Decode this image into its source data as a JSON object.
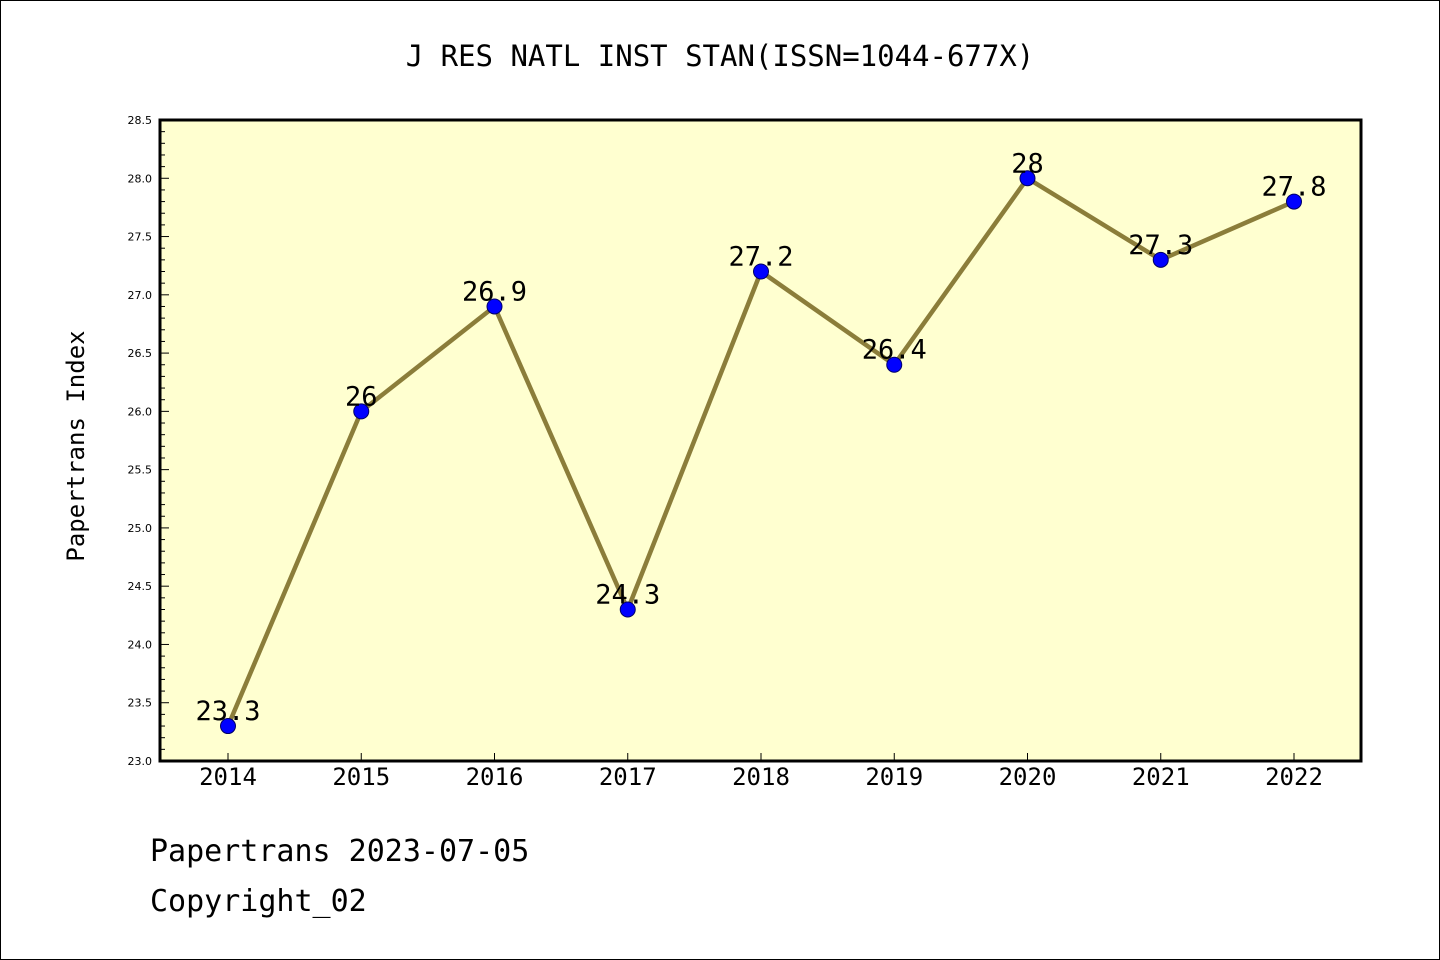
{
  "chart_data": {
    "type": "line",
    "title": "J RES NATL INST STAN(ISSN=1044-677X)",
    "ylabel": "Papertrans Index",
    "xlabel": "",
    "categories": [
      "2014",
      "2015",
      "2016",
      "2017",
      "2018",
      "2019",
      "2020",
      "2021",
      "2022"
    ],
    "series": [
      {
        "values": [
          23.3,
          26,
          26.9,
          24.3,
          27.2,
          26.4,
          28,
          27.3,
          27.8
        ]
      }
    ],
    "data_labels": [
      "23.3",
      "26",
      "26.9",
      "24.3",
      "27.2",
      "26.4",
      "28",
      "27.3",
      "27.8"
    ],
    "ylim": [
      23.0,
      28.5
    ],
    "yticks": [
      "23.0",
      "23.5",
      "24.0",
      "24.5",
      "25.0",
      "25.5",
      "26.0",
      "26.5",
      "27.0",
      "27.5",
      "28.0",
      "28.5"
    ],
    "grid": false,
    "legend": "none",
    "colors": {
      "plot_background": "#FFFFD0",
      "line": "#8B7D3A",
      "marker": "#0000FF"
    }
  },
  "footer": {
    "date_line": "Papertrans 2023-07-05",
    "copyright": "Copyright_02"
  }
}
